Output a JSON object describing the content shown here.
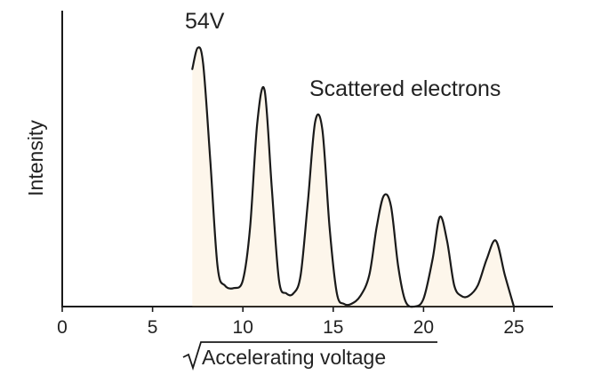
{
  "chart_data": {
    "type": "line",
    "title": "",
    "xlabel": "Accelerating voltage",
    "xlabel_prefix": "√",
    "ylabel": "Intensity",
    "xlim": [
      0,
      25
    ],
    "ylim": [
      0,
      1
    ],
    "xticks": [
      0,
      5,
      10,
      15,
      20,
      25
    ],
    "yticks": [],
    "grid": false,
    "legend": "none",
    "line_color": "#1a1a1a",
    "peak_fill_color": "#f2cf92",
    "series": [
      {
        "x": [
          7.2,
          7.5,
          7.8,
          8.2,
          8.6,
          9.0,
          9.5,
          10.0,
          10.4,
          10.8,
          11.2,
          11.6,
          12.0,
          12.4,
          12.8,
          13.2,
          13.6,
          14.0,
          14.4,
          14.8,
          15.2,
          15.6,
          16.0,
          16.5,
          17.0,
          17.4,
          17.8,
          18.2,
          18.6,
          19.0,
          19.5,
          20.0,
          20.5,
          20.9,
          21.3,
          21.7,
          22.1,
          22.5,
          23.0,
          23.5,
          24.0,
          24.5,
          25.0
        ],
        "y": [
          0.9,
          0.98,
          0.92,
          0.55,
          0.15,
          0.08,
          0.07,
          0.1,
          0.3,
          0.7,
          0.82,
          0.45,
          0.1,
          0.05,
          0.05,
          0.12,
          0.4,
          0.7,
          0.67,
          0.3,
          0.05,
          0.01,
          0.01,
          0.04,
          0.12,
          0.3,
          0.42,
          0.38,
          0.15,
          0.02,
          0.0,
          0.03,
          0.18,
          0.34,
          0.25,
          0.08,
          0.04,
          0.04,
          0.08,
          0.18,
          0.25,
          0.12,
          0.0
        ]
      }
    ],
    "annotations": [
      {
        "text": "54V",
        "x": 7.8,
        "y": 0.98
      },
      {
        "text": "Scattered electrons",
        "x": 18.5,
        "y": 0.82
      }
    ]
  }
}
